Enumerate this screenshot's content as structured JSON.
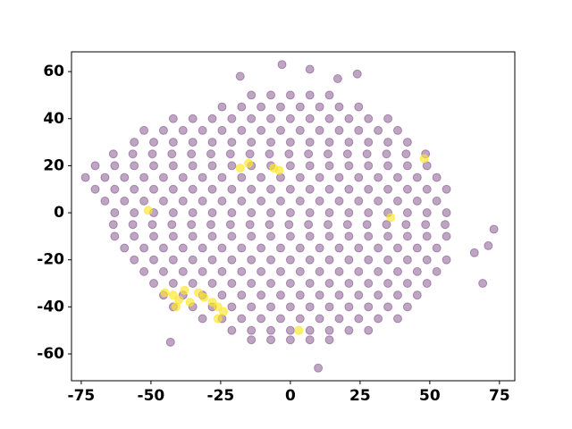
{
  "chart_data": {
    "type": "scatter",
    "xlim": [
      -78.5,
      80.5
    ],
    "ylim": [
      -71.4,
      68.4
    ],
    "xticks": [
      -75,
      -50,
      -25,
      0,
      25,
      50,
      75
    ],
    "yticks": [
      -60,
      -40,
      -20,
      0,
      20,
      40,
      60
    ],
    "grid": false,
    "series": [
      {
        "color": "#440154",
        "opacity": 0.35,
        "x": [
          -14,
          -7,
          0,
          7,
          14,
          -24.5,
          -17.5,
          -10.5,
          -3.5,
          3.5,
          10.5,
          17.5,
          24.5,
          -42,
          -35,
          -28,
          -21,
          -14,
          -7,
          0,
          7,
          14,
          21,
          28,
          35,
          -52.5,
          -45.5,
          -38.5,
          -31.5,
          -24.5,
          -17.5,
          -10.5,
          -3.5,
          3.5,
          10.5,
          17.5,
          24.5,
          31.5,
          38.5,
          -56,
          -49,
          -42,
          -35,
          -28,
          -21,
          -14,
          -7,
          0,
          7,
          14,
          21,
          28,
          35,
          42,
          -63.5,
          -56.5,
          -49.5,
          -42.5,
          -35.5,
          -28.5,
          -21.5,
          -14.5,
          -7.5,
          -0.5,
          6.5,
          13.5,
          20.5,
          27.5,
          34.5,
          41.5,
          48.5,
          -70,
          -63,
          -56,
          -49,
          -42,
          -35,
          -28,
          -21,
          -14,
          -7,
          0,
          7,
          14,
          21,
          28,
          35,
          42,
          49,
          -73.5,
          -66.5,
          -59.5,
          -52.5,
          -45.5,
          -38.5,
          -31.5,
          -24.5,
          -17.5,
          -10.5,
          -3.5,
          3.5,
          10.5,
          17.5,
          24.5,
          31.5,
          38.5,
          45.5,
          52.5,
          -70,
          -63,
          -56,
          -49,
          -42,
          -35,
          -28,
          -21,
          -14,
          -7,
          0,
          7,
          14,
          21,
          28,
          35,
          42,
          49,
          56,
          -66.5,
          -59.5,
          -52.5,
          -45.5,
          -38.5,
          -31.5,
          -24.5,
          -17.5,
          -10.5,
          -3.5,
          3.5,
          10.5,
          17.5,
          24.5,
          31.5,
          38.5,
          45.5,
          52.5,
          -63,
          -56,
          -49,
          -42,
          -35,
          -28,
          -21,
          -14,
          -7,
          0,
          7,
          14,
          21,
          28,
          35,
          42,
          49,
          56,
          -63.5,
          -56.5,
          -49.5,
          -42.5,
          -35.5,
          -28.5,
          -21.5,
          -14.5,
          -7.5,
          -0.5,
          6.5,
          13.5,
          20.5,
          27.5,
          34.5,
          41.5,
          48.5,
          55.5,
          -63,
          -56,
          -49,
          -42,
          -35,
          -28,
          -21,
          -14,
          -7,
          0,
          7,
          14,
          21,
          28,
          35,
          42,
          49,
          56,
          -59.5,
          -52.5,
          -45.5,
          -38.5,
          -31.5,
          -24.5,
          -17.5,
          -10.5,
          -3.5,
          3.5,
          10.5,
          17.5,
          24.5,
          31.5,
          38.5,
          45.5,
          52.5,
          -56,
          -49,
          -42,
          -35,
          -28,
          -21,
          -14,
          -7,
          0,
          7,
          14,
          21,
          28,
          35,
          42,
          49,
          56,
          -52.5,
          -45.5,
          -38.5,
          -31.5,
          -24.5,
          -17.5,
          -10.5,
          -3.5,
          3.5,
          10.5,
          17.5,
          24.5,
          31.5,
          38.5,
          45.5,
          52.5,
          -49,
          -42,
          -35,
          -28,
          -21,
          -14,
          -7,
          0,
          7,
          14,
          21,
          28,
          35,
          42,
          49,
          -45.5,
          -38.5,
          -31.5,
          -24.5,
          -17.5,
          -10.5,
          -3.5,
          3.5,
          10.5,
          17.5,
          24.5,
          31.5,
          38.5,
          45.5,
          -42,
          -35,
          -28,
          -21,
          -14,
          -7,
          0,
          7,
          14,
          21,
          28,
          35,
          42,
          -31.5,
          -24.5,
          -17.5,
          -10.5,
          -3.5,
          3.5,
          10.5,
          17.5,
          24.5,
          31.5,
          38.5,
          -21,
          -14,
          -7,
          0,
          7,
          14,
          21,
          28,
          -14,
          -7,
          0,
          7,
          14,
          73,
          71,
          66,
          69,
          10,
          -43,
          -18,
          -3,
          7,
          24,
          17
        ],
        "values": [
          50,
          50,
          50,
          50,
          50,
          45,
          45,
          45,
          45,
          45,
          45,
          45,
          45,
          40,
          40,
          40,
          40,
          40,
          40,
          40,
          40,
          40,
          40,
          40,
          40,
          35,
          35,
          35,
          35,
          35,
          35,
          35,
          35,
          35,
          35,
          35,
          35,
          35,
          35,
          30,
          30,
          30,
          30,
          30,
          30,
          30,
          30,
          30,
          30,
          30,
          30,
          30,
          30,
          30,
          25,
          25,
          25,
          25,
          25,
          25,
          25,
          25,
          25,
          25,
          25,
          25,
          25,
          25,
          25,
          25,
          25,
          20,
          20,
          20,
          20,
          20,
          20,
          20,
          20,
          20,
          20,
          20,
          20,
          20,
          20,
          20,
          20,
          20,
          20,
          15,
          15,
          15,
          15,
          15,
          15,
          15,
          15,
          15,
          15,
          15,
          15,
          15,
          15,
          15,
          15,
          15,
          15,
          15,
          10,
          10,
          10,
          10,
          10,
          10,
          10,
          10,
          10,
          10,
          10,
          10,
          10,
          10,
          10,
          10,
          10,
          10,
          10,
          5,
          5,
          5,
          5,
          5,
          5,
          5,
          5,
          5,
          5,
          5,
          5,
          5,
          5,
          5,
          5,
          5,
          5,
          0,
          0,
          0,
          0,
          0,
          0,
          0,
          0,
          0,
          0,
          0,
          0,
          0,
          0,
          0,
          0,
          0,
          0,
          -5,
          -5,
          -5,
          -5,
          -5,
          -5,
          -5,
          -5,
          -5,
          -5,
          -5,
          -5,
          -5,
          -5,
          -5,
          -5,
          -5,
          -5,
          -10,
          -10,
          -10,
          -10,
          -10,
          -10,
          -10,
          -10,
          -10,
          -10,
          -10,
          -10,
          -10,
          -10,
          -10,
          -10,
          -10,
          -10,
          -15,
          -15,
          -15,
          -15,
          -15,
          -15,
          -15,
          -15,
          -15,
          -15,
          -15,
          -15,
          -15,
          -15,
          -15,
          -15,
          -15,
          -20,
          -20,
          -20,
          -20,
          -20,
          -20,
          -20,
          -20,
          -20,
          -20,
          -20,
          -20,
          -20,
          -20,
          -20,
          -20,
          -20,
          -25,
          -25,
          -25,
          -25,
          -25,
          -25,
          -25,
          -25,
          -25,
          -25,
          -25,
          -25,
          -25,
          -25,
          -25,
          -25,
          -30,
          -30,
          -30,
          -30,
          -30,
          -30,
          -30,
          -30,
          -30,
          -30,
          -30,
          -30,
          -30,
          -30,
          -30,
          -35,
          -35,
          -35,
          -35,
          -35,
          -35,
          -35,
          -35,
          -35,
          -35,
          -35,
          -35,
          -35,
          -35,
          -40,
          -40,
          -40,
          -40,
          -40,
          -40,
          -40,
          -40,
          -40,
          -40,
          -40,
          -40,
          -40,
          -45,
          -45,
          -45,
          -45,
          -45,
          -45,
          -45,
          -45,
          -45,
          -45,
          -45,
          -50,
          -50,
          -50,
          -50,
          -50,
          -50,
          -50,
          -50,
          -54,
          -54,
          -54,
          -54,
          -54,
          -7,
          -14,
          -17,
          -30,
          -66,
          -55,
          58,
          63,
          61,
          59,
          57
        ]
      },
      {
        "color": "#fde725",
        "opacity": 0.65,
        "x": [
          -45,
          -42,
          -40,
          -38,
          -33,
          -31,
          -28,
          -26,
          -24,
          -36,
          -15,
          -18,
          -6,
          -4,
          48,
          36,
          -51,
          -26,
          3,
          -41
        ],
        "values": [
          -34,
          -35,
          -37,
          -33,
          -34,
          -36,
          -38,
          -40,
          -42,
          -38,
          21,
          19,
          19,
          18,
          23,
          -2,
          1,
          -45,
          -50,
          -40
        ]
      }
    ]
  }
}
